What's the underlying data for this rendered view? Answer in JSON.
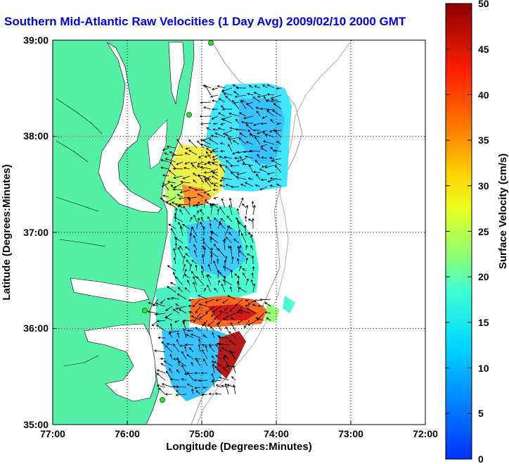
{
  "title": "Southern Mid-Atlantic Raw Velocities (1 Day Avg) 2009/02/10 2000 GMT",
  "x_axis": {
    "label": "Longitude (Degrees:Minutes)",
    "ticks": [
      "77:00",
      "76:00",
      "75:00",
      "74:00",
      "73:00",
      "72:00"
    ]
  },
  "y_axis": {
    "label": "Latitude (Degrees:Minutes)",
    "ticks": [
      "39:00",
      "38:00",
      "37:00",
      "36:00",
      "35:00"
    ]
  },
  "colorbar": {
    "label": "Surface Velocity (cm/s)",
    "ticks": [
      "50",
      "45",
      "40",
      "35",
      "30",
      "25",
      "20",
      "15",
      "10",
      "5",
      "0"
    ],
    "min": 0,
    "max": 50
  },
  "colors": {
    "land": "#55f0a8",
    "title": "#0000ee"
  }
}
